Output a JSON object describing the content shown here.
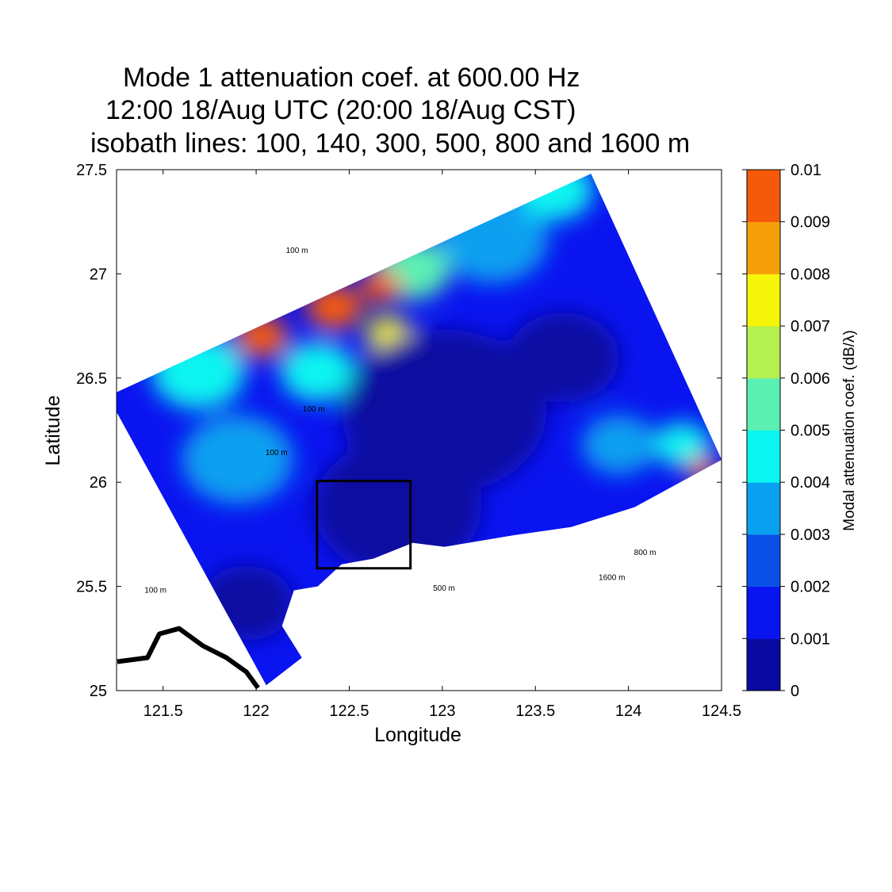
{
  "chart_data": {
    "type": "heatmap",
    "title": [
      "Mode 1 attenuation coef. at 600.00 Hz",
      "12:00 18/Aug UTC (20:00 18/Aug CST)",
      "isobath lines: 100, 140, 300, 500, 800 and 1600 m"
    ],
    "xlabel": "Longitude",
    "ylabel": "Latitude",
    "xlim": [
      121.25,
      124.5
    ],
    "ylim": [
      25,
      27.5
    ],
    "xticks": [
      121.5,
      122,
      122.5,
      123,
      123.5,
      124,
      124.5
    ],
    "xtick_labels": [
      "121.5",
      "122",
      "122.5",
      "123",
      "123.5",
      "124",
      "124.5"
    ],
    "yticks": [
      25,
      25.5,
      26,
      26.5,
      27,
      27.5
    ],
    "ytick_labels": [
      "25",
      "25.5",
      "26",
      "26.5",
      "27",
      "27.5"
    ],
    "colorbar": {
      "label": "Modal attenuation coef. (dB/λ)",
      "range": [
        0,
        0.01
      ],
      "ticks": [
        "0",
        "0.001",
        "0.002",
        "0.003",
        "0.004",
        "0.005",
        "0.006",
        "0.007",
        "0.008",
        "0.009",
        "0.01"
      ],
      "colors": [
        "#0a0aa0",
        "#0a14f0",
        "#0a50e6",
        "#0aa0f0",
        "#0af5f0",
        "#5af0b4",
        "#b4f050",
        "#f5f50a",
        "#f5a00a",
        "#f55a0a"
      ]
    },
    "field_domain": [
      [
        123.799,
        27.481
      ],
      [
        124.501,
        26.108
      ],
      [
        124.033,
        25.88
      ],
      [
        123.693,
        25.785
      ],
      [
        123.395,
        25.747
      ],
      [
        123.012,
        25.69
      ],
      [
        122.841,
        25.709
      ],
      [
        122.629,
        25.633
      ],
      [
        122.459,
        25.606
      ],
      [
        122.331,
        25.5
      ],
      [
        122.203,
        25.481
      ],
      [
        122.139,
        25.31
      ],
      [
        122.246,
        25.158
      ],
      [
        122.054,
        25.025
      ],
      [
        121.203,
        26.413
      ]
    ],
    "field_base_value": 0.0015,
    "field_patches": [
      {
        "lon": 121.9,
        "lat": 26.11,
        "r": 0.3,
        "value": 0.0035
      },
      {
        "lon": 123.27,
        "lat": 27.17,
        "r": 0.3,
        "value": 0.0035
      },
      {
        "lon": 123.95,
        "lat": 26.18,
        "r": 0.2,
        "value": 0.0035
      },
      {
        "lon": 121.69,
        "lat": 26.53,
        "r": 0.25,
        "value": 0.0045
      },
      {
        "lon": 122.33,
        "lat": 26.53,
        "r": 0.2,
        "value": 0.0045
      },
      {
        "lon": 122.84,
        "lat": 27.02,
        "r": 0.2,
        "value": 0.005
      },
      {
        "lon": 123.61,
        "lat": 27.4,
        "r": 0.2,
        "value": 0.0045
      },
      {
        "lon": 124.29,
        "lat": 26.18,
        "r": 0.15,
        "value": 0.0045
      },
      {
        "lon": 122.71,
        "lat": 26.71,
        "r": 0.12,
        "value": 0.0075
      },
      {
        "lon": 122.03,
        "lat": 26.7,
        "r": 0.14,
        "value": 0.0095
      },
      {
        "lon": 122.42,
        "lat": 26.84,
        "r": 0.15,
        "value": 0.0095
      },
      {
        "lon": 122.67,
        "lat": 26.94,
        "r": 0.11,
        "value": 0.0095
      },
      {
        "lon": 124.4,
        "lat": 26.06,
        "r": 0.08,
        "value": 0.0095
      },
      {
        "lon": 123.01,
        "lat": 26.34,
        "r": 0.55,
        "value": 0.0005
      },
      {
        "lon": 122.76,
        "lat": 25.88,
        "r": 0.45,
        "value": 0.0005
      },
      {
        "lon": 121.95,
        "lat": 25.42,
        "r": 0.25,
        "value": 0.0005
      },
      {
        "lon": 123.65,
        "lat": 26.6,
        "r": 0.3,
        "value": 0.0005
      }
    ],
    "study_box": {
      "lon": [
        122.327,
        122.829
      ],
      "lat": [
        25.587,
        26.006
      ]
    },
    "coastline": [
      [
        121.254,
        25.139
      ],
      [
        121.416,
        25.158
      ],
      [
        121.48,
        25.272
      ],
      [
        121.586,
        25.298
      ],
      [
        121.714,
        25.215
      ],
      [
        121.84,
        25.158
      ],
      [
        121.948,
        25.089
      ],
      [
        122.01,
        25.013
      ]
    ],
    "isobath_labels": [
      {
        "text": "100 m",
        "lon": 122.16,
        "lat": 27.1
      },
      {
        "text": "100 m",
        "lon": 122.05,
        "lat": 26.13
      },
      {
        "text": "100 m",
        "lon": 122.25,
        "lat": 26.34
      },
      {
        "text": "100 m",
        "lon": 121.4,
        "lat": 25.47
      },
      {
        "text": "800 m",
        "lon": 124.03,
        "lat": 25.65
      },
      {
        "text": "1600 m",
        "lon": 123.84,
        "lat": 25.53
      },
      {
        "text": "500 m",
        "lon": 122.95,
        "lat": 25.48
      }
    ]
  }
}
